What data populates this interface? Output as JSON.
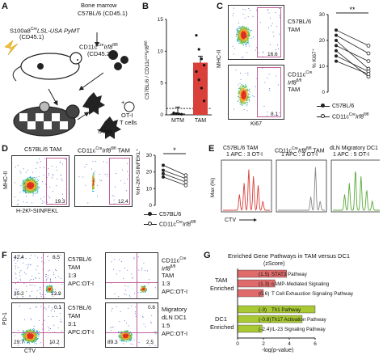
{
  "panels": {
    "A": {
      "letter": "A",
      "bone_marrow_label": "Bone marrow",
      "c57_line": "C57BL/6 (CD45.1)",
      "mouse_line1": "S100a8",
      "mouse_line1_sup": "Cre",
      "mouse_line1_rest": "LSL-USA PyMT",
      "mouse_line2": "(CD45.1)",
      "cd11c_line1": "CD11c",
      "cd11c_sup1": "Cre",
      "cd11c_mid": "Irf8",
      "cd11c_sup2": "fl/fl",
      "cd11c_line2": "(CD45.2)",
      "tams_label": "TAMs",
      "plus_label": "+",
      "oti_label": "OT-I",
      "tcells_label": "T cells"
    },
    "B": {
      "letter": "B",
      "ylabel": "C57BL/6 / CD11cCre Irf8fl/fl",
      "chart_data": {
        "type": "bar",
        "categories": [
          "MTM",
          "TAM"
        ],
        "values": [
          0.2,
          8.2
        ],
        "points": {
          "MTM": [
            0.3,
            0.2,
            0.15,
            0.1,
            0.25
          ],
          "TAM": [
            12.5,
            10.3,
            8.8,
            7.8,
            6.8,
            5.5,
            4.2,
            2.2
          ]
        },
        "ylim": [
          0,
          15
        ],
        "yticks": [
          "0",
          "5",
          "10",
          "15"
        ],
        "reference_line": 1,
        "bar_color": "#d9403a"
      }
    },
    "C": {
      "letter": "C",
      "top_label1": "C57BL/6",
      "top_label2": "TAM",
      "bottom_label1": "CD11c",
      "bottom_sup1": "Cre",
      "bottom_mid": "Irf8",
      "bottom_sup2": "fl/fl",
      "bottom_label2": "TAM",
      "top_pct": "16.6",
      "bottom_pct": "8.1",
      "xlabel": "Ki67",
      "ylabel": "MHC-II",
      "chart_data": {
        "type": "line",
        "ylabel": "% Ki67⁺",
        "ylim": [
          0,
          30
        ],
        "yticks": [
          "0",
          "10",
          "20",
          "30"
        ],
        "pairs": [
          [
            24,
            18
          ],
          [
            22,
            15
          ],
          [
            20,
            9
          ],
          [
            18,
            12
          ],
          [
            16,
            6
          ],
          [
            14,
            8
          ],
          [
            12,
            7
          ]
        ],
        "significance": "**"
      },
      "legend": [
        "C57BL/6",
        "CD11c Cre Irf8 fl/fl"
      ],
      "legend_sup": [
        "",
        "Cre"
      ],
      "legend_b": [
        "",
        "Irf8"
      ],
      "legend_sup2": [
        "",
        "fl/fl"
      ]
    },
    "D": {
      "letter": "D",
      "plot1_title": "C57BL/6 TAM",
      "plot2_title": "CD11c",
      "plot2_sup1": "Cre",
      "plot2_mid": "Irf8",
      "plot2_sup2": "fl/fl",
      "plot2_end": " TAM",
      "plot1_pct": "19.3",
      "plot2_pct": "12.4",
      "xlabel": "H-2Kᵇ-SIINFEKL",
      "ylabel": "MHC-II",
      "chart_data": {
        "type": "line",
        "ylabel": "%H-2Kᵇ-SIINFEKL⁺",
        "ylim": [
          0,
          30
        ],
        "yticks": [
          "0",
          "10",
          "20",
          "30"
        ],
        "pairs": [
          [
            24,
            18
          ],
          [
            21,
            16
          ],
          [
            19,
            14
          ],
          [
            17,
            12
          ]
        ],
        "significance": "*"
      },
      "legend": [
        "C57BL/6",
        "CD11c Cre Irf8 fl/fl"
      ]
    },
    "E": {
      "letter": "E",
      "h1_title1": "C57BL/6 TAM",
      "h1_title2": "1 APC : 3 OT-I",
      "h2_title1": "CD11c",
      "h2_sup1": "Cre",
      "h2_mid": "Irf8",
      "h2_sup2": "fl/fl",
      "h2_end": " TAM",
      "h2_title2": "1 APC : 3 OT-I",
      "h3_title1": "dLN Migratory DC1",
      "h3_title2": "1 APC : 5 OT-I",
      "ylabel": "Max (%)",
      "xlabel": "CTV",
      "colors": [
        "#d9403a",
        "#888888",
        "#5aaa3a"
      ]
    },
    "F": {
      "letter": "F",
      "ylabel": "PD-1",
      "xlabel": "CTV",
      "q1": {
        "tl": "42.4",
        "tr": "8.5",
        "bl": "35.2",
        "br": "13.9",
        "l1": "C57BL/6",
        "l2": "TAM",
        "l3": "1:3",
        "l4": "APC:OT-I"
      },
      "q2": {
        "tl": "",
        "tr": "",
        "bl": "",
        "br": "",
        "l1": "CD11c",
        "l1_sup": "Cre",
        "l1_mid": "Irf8",
        "l1_sup2": "fl/fl",
        "l2": "TAM",
        "l3": "1:3",
        "l4": "APC:OT-I"
      },
      "q3": {
        "tl": "",
        "tr": "0.1",
        "bl": "29.7",
        "br": "10.2",
        "l1": "C57BL/6",
        "l2": "TAM",
        "l3": "3:1",
        "l4": "APC:OT-I"
      },
      "q4": {
        "tl": "",
        "tr": "0.6",
        "bl": "89.3",
        "br": "2.5",
        "l1": "Migratory",
        "l2": "dLN DC1",
        "l3": "1:5",
        "l4": "APC:OT-I"
      }
    },
    "G": {
      "letter": "G",
      "title": "Enriched Gene Pathways in TAM versus DC1",
      "zscore_label": "(zScore)",
      "group1": "TAM",
      "group1b": "Enriched",
      "group2": "DC1",
      "group2b": "Enriched",
      "xlabel": "-log(p-value)",
      "chart_data": {
        "type": "bar",
        "categories": [
          "STAT3 Pathway",
          "cAMP-Mediated Signaling",
          "T Cell Exhaustion Signaling Pathway",
          "Th1 Pathway",
          "Th17 Activation Pathway",
          "IL-23 Signaling Pathway"
        ],
        "values": [
          3.8,
          2.9,
          2.0,
          6.0,
          5.0,
          1.9
        ],
        "zscores": [
          "1.5",
          "1.3",
          "0.6",
          "-3",
          "-0.8",
          "-2.4"
        ],
        "xlim": [
          0,
          6
        ],
        "xticks": [
          "0",
          "2",
          "4",
          "6"
        ],
        "colors": [
          "#e06b6b",
          "#e06b6b",
          "#e06b6b",
          "#a8c834",
          "#a8c834",
          "#a8c834"
        ]
      }
    }
  }
}
